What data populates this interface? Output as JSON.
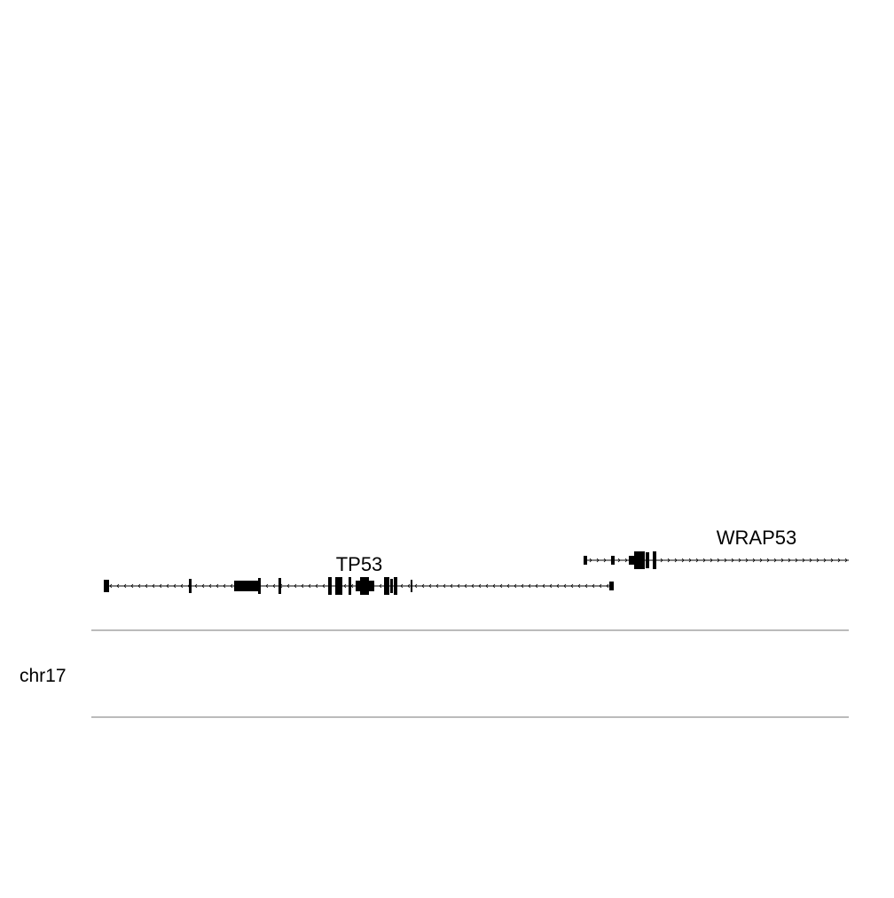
{
  "chromosome": "chr17",
  "colors": {
    "feature": "#000000",
    "ideogram_border": "#777777",
    "background": "#ffffff"
  },
  "genes": [
    {
      "name": "TP53",
      "strand": "minus"
    },
    {
      "name": "WRAP53",
      "strand": "plus"
    }
  ]
}
